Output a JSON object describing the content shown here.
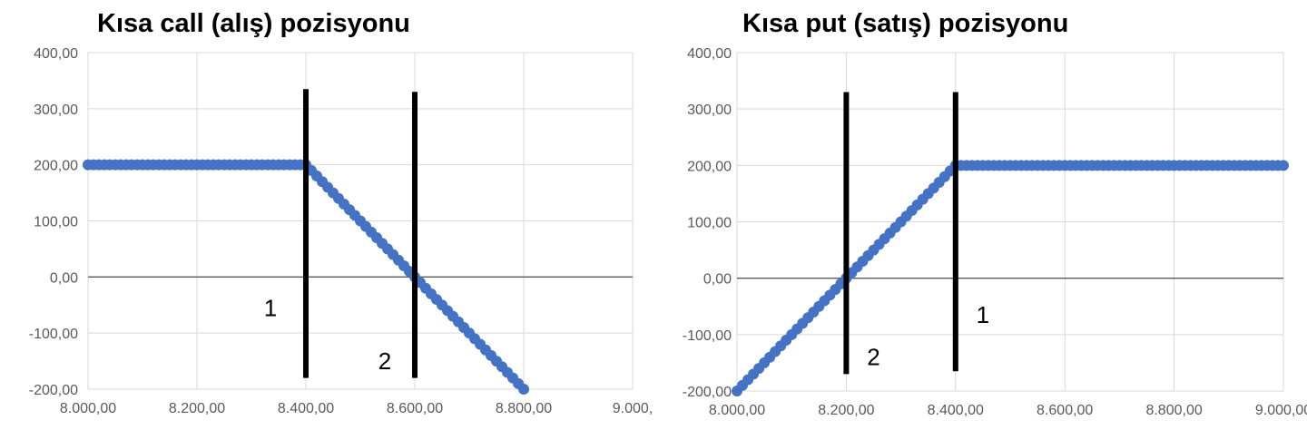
{
  "colors": {
    "marker": "#4472C4",
    "grid": "#D9D9D9",
    "axis": "#595959",
    "strike_line": "#000000"
  },
  "chart_data": [
    {
      "type": "scatter",
      "title": "Kısa call (alış) pozisyonu",
      "xlim": [
        8000,
        9000
      ],
      "ylim": [
        -200,
        400
      ],
      "x_ticks": [
        8000,
        8200,
        8400,
        8600,
        8800,
        9000
      ],
      "x_tick_labels": [
        "8.000,00",
        "8.200,00",
        "8.400,00",
        "8.600,00",
        "8.800,00",
        "9.000,"
      ],
      "y_ticks": [
        400,
        300,
        200,
        100,
        0,
        -100,
        -200
      ],
      "y_tick_labels": [
        "400,00",
        "300,00",
        "200,00",
        "100,00",
        "0,00",
        "-100,00",
        "-200,00"
      ],
      "grid": true,
      "series": [
        {
          "marker": "circle",
          "color": "#4472C4",
          "x_start": 8000,
          "x_step": 10,
          "x_end": 8800,
          "y_rule": "200 if x<=8400 else 200-(x-8400)"
        }
      ],
      "vertical_lines": [
        {
          "x": 8400,
          "y_range": [
            -180,
            335
          ]
        },
        {
          "x": 8600,
          "y_range": [
            -180,
            330
          ]
        }
      ],
      "annotations": [
        {
          "text": "1",
          "x": 8335,
          "y": -55
        },
        {
          "text": "2",
          "x": 8545,
          "y": -150
        }
      ]
    },
    {
      "type": "scatter",
      "title": "Kısa put (satış) pozisyonu",
      "xlim": [
        8000,
        9000
      ],
      "ylim": [
        -200,
        400
      ],
      "x_ticks": [
        8000,
        8200,
        8400,
        8600,
        8800,
        9000
      ],
      "x_tick_labels": [
        "8.000,00",
        "8.200,00",
        "8.400,00",
        "8.600,00",
        "8.800,00",
        "9.000,00"
      ],
      "y_ticks": [
        400,
        300,
        200,
        100,
        0,
        -100,
        -200
      ],
      "y_tick_labels": [
        "400,00",
        "300,00",
        "200,00",
        "100,00",
        "0,00",
        "-100,00",
        "-200,00"
      ],
      "grid": true,
      "series": [
        {
          "marker": "circle",
          "color": "#4472C4",
          "x_start": 8000,
          "x_step": 10,
          "x_end": 9000,
          "y_rule": "200 if x>=8400 else x-8200"
        }
      ],
      "vertical_lines": [
        {
          "x": 8200,
          "y_range": [
            -170,
            330
          ]
        },
        {
          "x": 8400,
          "y_range": [
            -165,
            330
          ]
        }
      ],
      "annotations": [
        {
          "text": "2",
          "x": 8250,
          "y": -140
        },
        {
          "text": "1",
          "x": 8450,
          "y": -65
        }
      ]
    }
  ]
}
